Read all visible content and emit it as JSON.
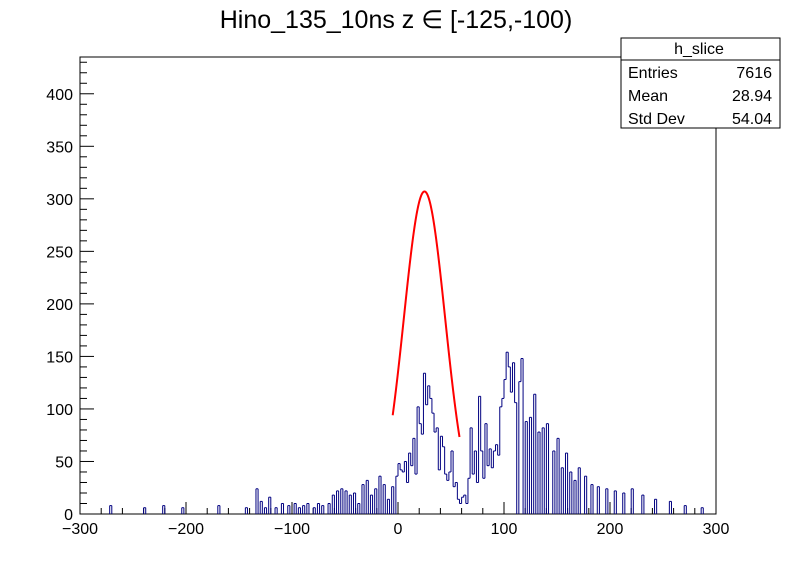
{
  "chart_data": {
    "type": "histogram",
    "title": "Hino_135_10ns z  ∈ [-125,-100)",
    "xlabel": "",
    "ylabel": "",
    "xlim": [
      -300,
      300
    ],
    "ylim": [
      0,
      435
    ],
    "x_ticks": [
      "−300",
      "−200",
      "−100",
      "0",
      "100",
      "200",
      "300"
    ],
    "x_tick_values": [
      -300,
      -200,
      -100,
      0,
      100,
      200,
      300
    ],
    "y_ticks": [
      "0",
      "50",
      "100",
      "150",
      "200",
      "250",
      "300",
      "350",
      "400"
    ],
    "y_tick_values": [
      0,
      50,
      100,
      150,
      200,
      250,
      300,
      350,
      400
    ],
    "grid": false,
    "bin_width": 2,
    "histogram_color": "#000080",
    "fit_color": "#ff0000",
    "bins": [
      [
        -272,
        8
      ],
      [
        -240,
        6
      ],
      [
        -222,
        8
      ],
      [
        -204,
        6
      ],
      [
        -170,
        8
      ],
      [
        -144,
        6
      ],
      [
        -134,
        24
      ],
      [
        -130,
        12
      ],
      [
        -126,
        6
      ],
      [
        -122,
        16
      ],
      [
        -116,
        6
      ],
      [
        -110,
        10
      ],
      [
        -104,
        8
      ],
      [
        -98,
        10
      ],
      [
        -94,
        6
      ],
      [
        -90,
        8
      ],
      [
        -86,
        10
      ],
      [
        -80,
        6
      ],
      [
        -76,
        10
      ],
      [
        -72,
        8
      ],
      [
        -66,
        10
      ],
      [
        -62,
        18
      ],
      [
        -58,
        22
      ],
      [
        -54,
        24
      ],
      [
        -50,
        22
      ],
      [
        -46,
        18
      ],
      [
        -42,
        20
      ],
      [
        -38,
        10
      ],
      [
        -34,
        28
      ],
      [
        -30,
        32
      ],
      [
        -26,
        18
      ],
      [
        -22,
        24
      ],
      [
        -18,
        36
      ],
      [
        -14,
        28
      ],
      [
        -10,
        14
      ],
      [
        -6,
        26
      ],
      [
        -2,
        36
      ],
      [
        0,
        48
      ],
      [
        2,
        42
      ],
      [
        4,
        40
      ],
      [
        6,
        50
      ],
      [
        8,
        30
      ],
      [
        10,
        58
      ],
      [
        12,
        46
      ],
      [
        14,
        72
      ],
      [
        16,
        38
      ],
      [
        18,
        102
      ],
      [
        20,
        86
      ],
      [
        22,
        76
      ],
      [
        24,
        134
      ],
      [
        26,
        104
      ],
      [
        28,
        122
      ],
      [
        30,
        110
      ],
      [
        32,
        96
      ],
      [
        34,
        78
      ],
      [
        36,
        82
      ],
      [
        38,
        42
      ],
      [
        40,
        74
      ],
      [
        42,
        64
      ],
      [
        44,
        38
      ],
      [
        46,
        32
      ],
      [
        48,
        40
      ],
      [
        50,
        60
      ],
      [
        52,
        26
      ],
      [
        54,
        30
      ],
      [
        56,
        14
      ],
      [
        58,
        10
      ],
      [
        60,
        16
      ],
      [
        62,
        18
      ],
      [
        64,
        10
      ],
      [
        66,
        34
      ],
      [
        68,
        82
      ],
      [
        70,
        38
      ],
      [
        72,
        60
      ],
      [
        74,
        30
      ],
      [
        76,
        112
      ],
      [
        78,
        60
      ],
      [
        80,
        34
      ],
      [
        82,
        86
      ],
      [
        84,
        46
      ],
      [
        86,
        62
      ],
      [
        88,
        44
      ],
      [
        90,
        60
      ],
      [
        92,
        66
      ],
      [
        94,
        56
      ],
      [
        96,
        102
      ],
      [
        98,
        110
      ],
      [
        100,
        128
      ],
      [
        102,
        154
      ],
      [
        104,
        140
      ],
      [
        106,
        116
      ],
      [
        108,
        144
      ],
      [
        110,
        106
      ],
      [
        114,
        126
      ],
      [
        116,
        148
      ],
      [
        120,
        88
      ],
      [
        124,
        92
      ],
      [
        128,
        114
      ],
      [
        132,
        78
      ],
      [
        136,
        82
      ],
      [
        140,
        86
      ],
      [
        146,
        60
      ],
      [
        150,
        72
      ],
      [
        154,
        44
      ],
      [
        158,
        58
      ],
      [
        162,
        40
      ],
      [
        166,
        32
      ],
      [
        170,
        44
      ],
      [
        176,
        36
      ],
      [
        182,
        28
      ],
      [
        188,
        26
      ],
      [
        196,
        24
      ],
      [
        204,
        22
      ],
      [
        212,
        20
      ],
      [
        220,
        24
      ],
      [
        230,
        18
      ],
      [
        242,
        14
      ],
      [
        256,
        12
      ],
      [
        270,
        8
      ],
      [
        286,
        6
      ]
    ],
    "fit": {
      "function": "gaus",
      "range": [
        -5,
        58
      ],
      "constant": 307,
      "mean": 25,
      "sigma": 19.5
    },
    "legend": {
      "title": "h_slice",
      "rows": [
        {
          "label": "Entries",
          "value": "7616"
        },
        {
          "label": "Mean",
          "value": "28.94"
        },
        {
          "label": "Std Dev",
          "value": "54.04"
        }
      ]
    }
  }
}
